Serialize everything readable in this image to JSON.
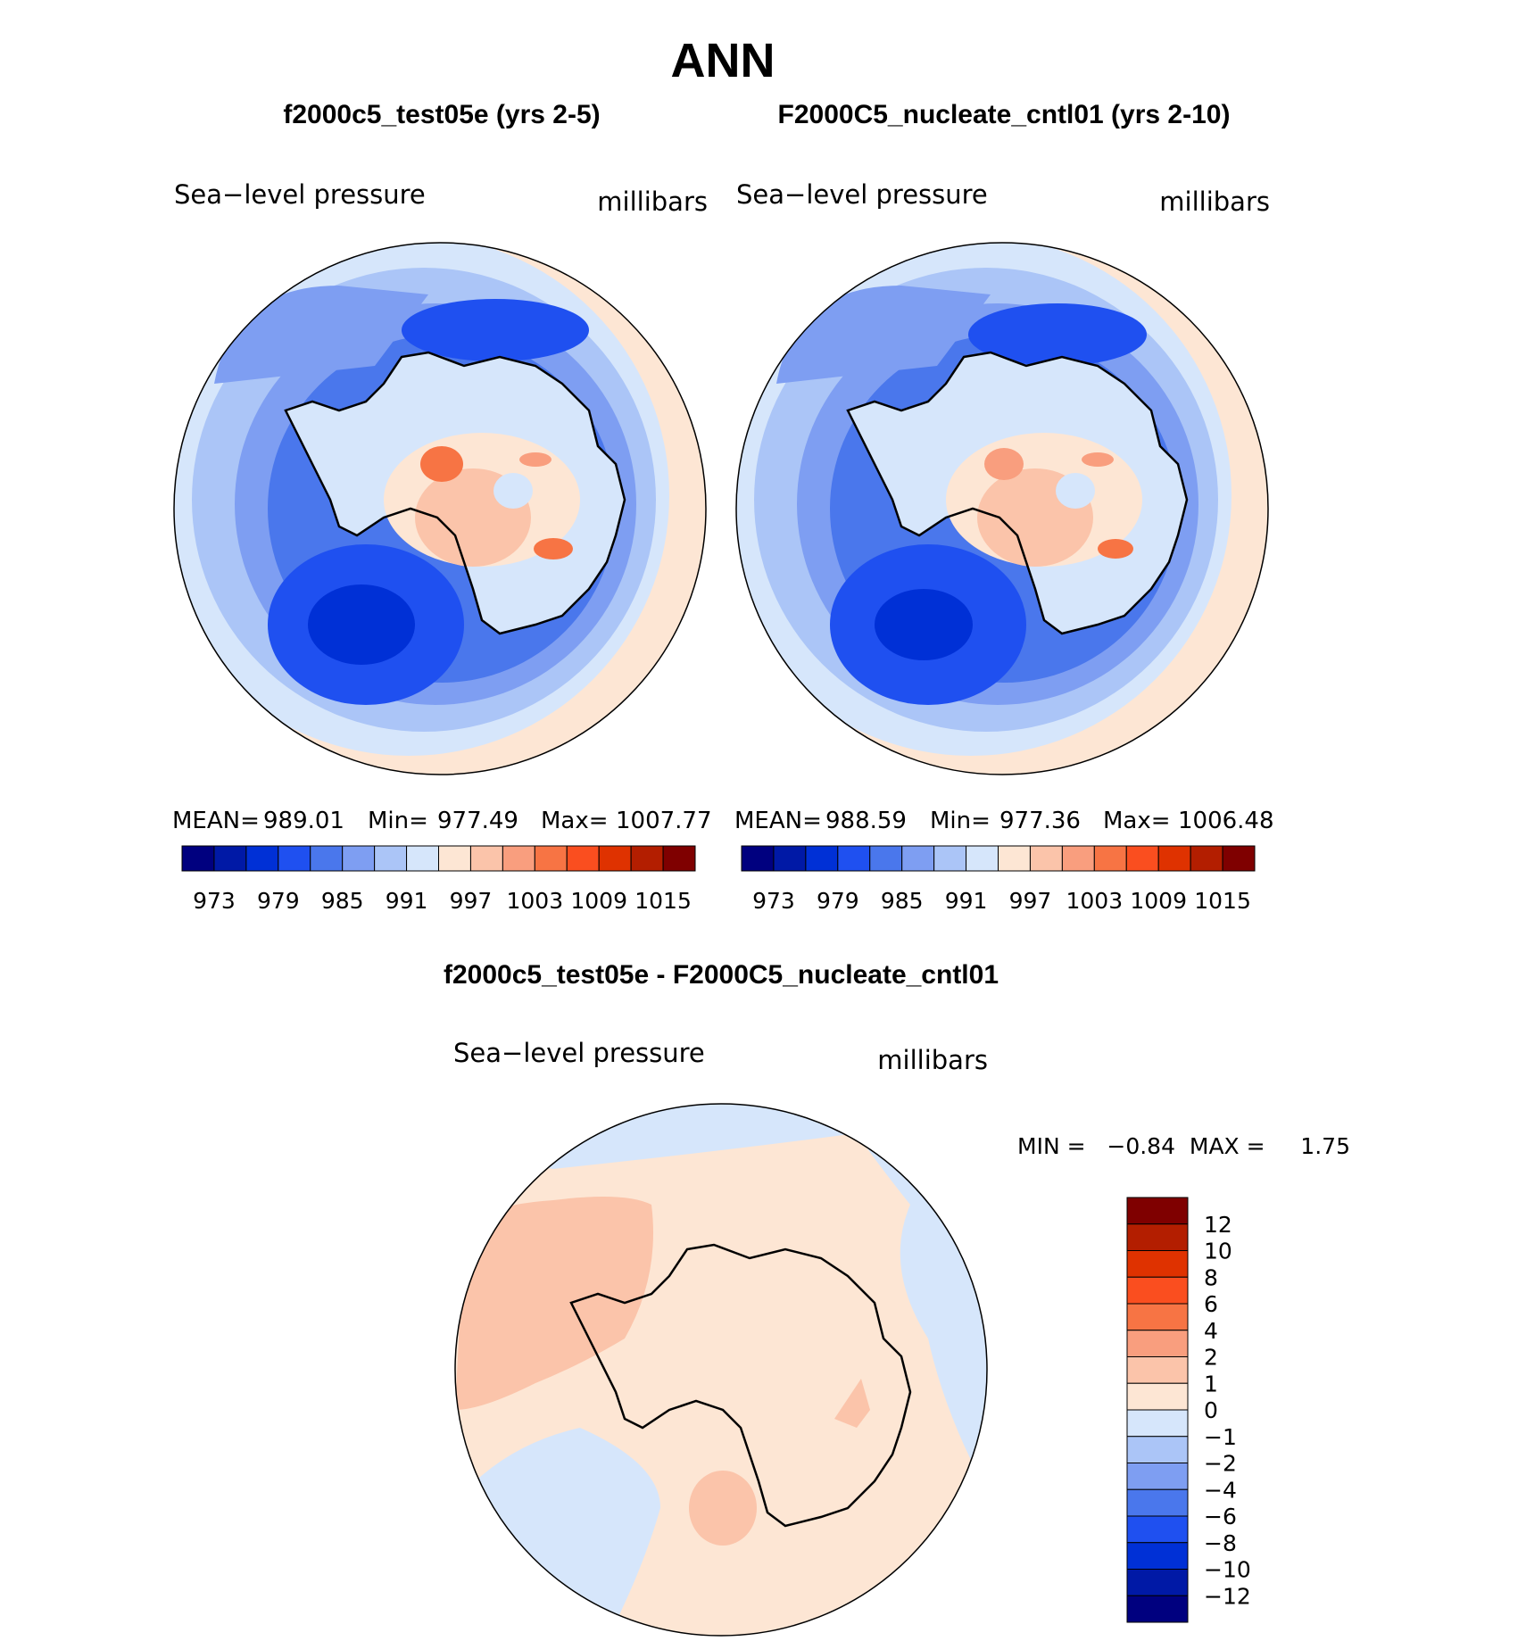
{
  "figure": {
    "season": "ANN",
    "colors": {
      "abs_scale": [
        "#00007f",
        "#0019a6",
        "#0030d6",
        "#1f50f0",
        "#4a77ec",
        "#7e9ef2",
        "#abc5f7",
        "#d6e6fb",
        "#fde6d4",
        "#fbc4aa",
        "#f99e7e",
        "#f77444",
        "#fa4e1f",
        "#df3200",
        "#b31e00",
        "#7f0000"
      ],
      "diff_scale": [
        "#00007f",
        "#0019a6",
        "#0030d6",
        "#1f50f0",
        "#4a77ec",
        "#7e9ef2",
        "#abc5f7",
        "#d6e6fb",
        "#fde6d4",
        "#fbc4aa",
        "#f99e7e",
        "#f77444",
        "#fa4e1f",
        "#df3200",
        "#b31e00",
        "#7f0000"
      ]
    },
    "panels": [
      {
        "case_title": "f2000c5_test05e (yrs 2-5)",
        "variable": "Sea−level pressure",
        "units": "millibars",
        "mean_label": "MEAN=",
        "mean": "989.01",
        "min_label": "Min=",
        "min": "977.49",
        "max_label": "Max=",
        "max": "1007.77",
        "colorbar_ticks": [
          "973",
          "979",
          "985",
          "991",
          "997",
          "1003",
          "1009",
          "1015"
        ]
      },
      {
        "case_title": "F2000C5_nucleate_cntl01 (yrs 2-10)",
        "variable": "Sea−level pressure",
        "units": "millibars",
        "mean_label": "MEAN=",
        "mean": "988.59",
        "min_label": "Min=",
        "min": "977.36",
        "max_label": "Max=",
        "max": "1006.48",
        "colorbar_ticks": [
          "973",
          "979",
          "985",
          "991",
          "997",
          "1003",
          "1009",
          "1015"
        ]
      }
    ],
    "difference": {
      "title": "f2000c5_test05e - F2000C5_nucleate_cntl01",
      "variable": "Sea−level pressure",
      "units": "millibars",
      "minmax_label": "MIN =   −0.84  MAX =     1.75",
      "colorbar_labels": [
        "12",
        "10",
        "8",
        "6",
        "4",
        "2",
        "1",
        "0",
        "−1",
        "−2",
        "−4",
        "−6",
        "−8",
        "−10",
        "−12"
      ]
    }
  }
}
